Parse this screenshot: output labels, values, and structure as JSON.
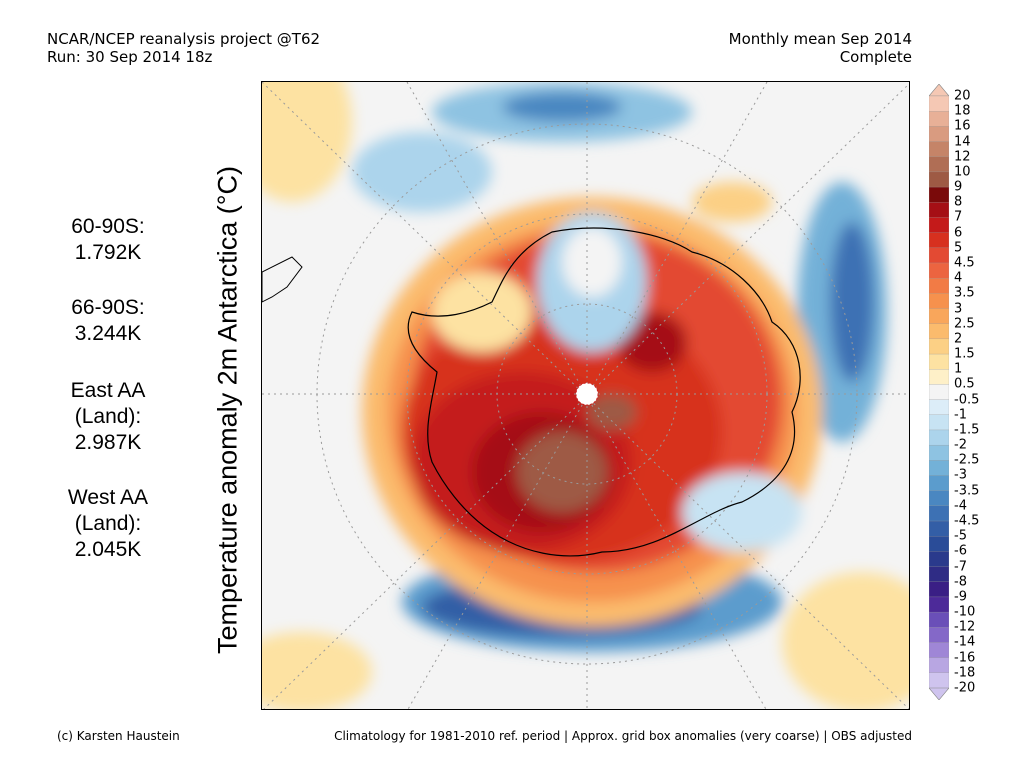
{
  "header": {
    "left_line1": "NCAR/NCEP reanalysis project @T62",
    "left_line2": "Run: 30 Sep 2014 18z",
    "right_line1": "Monthly mean Sep 2014",
    "right_line2": "Complete"
  },
  "stats": [
    {
      "label": "60-90S:",
      "value": "1.792K"
    },
    {
      "label": "66-90S:",
      "value": "3.244K"
    },
    {
      "label": "East AA",
      "label2": "(Land):",
      "value": "2.987K"
    },
    {
      "label": "West AA",
      "label2": "(Land):",
      "value": "2.045K"
    }
  ],
  "y_axis_label": "Temperature anomaly 2m Antarctica (°C)",
  "colorbar": {
    "levels": [
      "20",
      "18",
      "16",
      "14",
      "12",
      "10",
      "9",
      "8",
      "7",
      "6",
      "5",
      "4.5",
      "4",
      "3.5",
      "3",
      "2.5",
      "2",
      "1.5",
      "1",
      "0.5",
      "-0.5",
      "-1",
      "-1.5",
      "-2",
      "-2.5",
      "-3",
      "-3.5",
      "-4",
      "-4.5",
      "-5",
      "-6",
      "-7",
      "-8",
      "-9",
      "-10",
      "-12",
      "-14",
      "-16",
      "-18",
      "-20"
    ],
    "colors": [
      "#f5c8b4",
      "#e8b097",
      "#d99b80",
      "#c58468",
      "#b06e55",
      "#9e5a44",
      "#7a0a0a",
      "#a50f15",
      "#c41a1a",
      "#d7301f",
      "#e34a33",
      "#ec6440",
      "#f27b45",
      "#f6914d",
      "#f9a65b",
      "#fbbb6d",
      "#fcd085",
      "#fde2a2",
      "#fef0c8",
      "#f4f4f4",
      "#dcedf8",
      "#c7e3f3",
      "#acd4ec",
      "#8ec3e2",
      "#73b1d8",
      "#5b9ccd",
      "#4a87c1",
      "#3d71b4",
      "#335ea6",
      "#2a4c98",
      "#2a3a8c",
      "#2f2c85",
      "#3a1f85",
      "#4d2a99",
      "#6a4fb8",
      "#8468c8",
      "#9f86d6",
      "#b8a6e2",
      "#cfc4ee"
    ],
    "upper_triangle_color": "#f5c8b4",
    "lower_triangle_color": "#cfc4ee"
  },
  "footer": {
    "left": "(c) Karsten Haustein",
    "right": "Climatology for 1981-2010 ref. period | Approx. grid box anomalies (very coarse) | OBS adjusted"
  }
}
